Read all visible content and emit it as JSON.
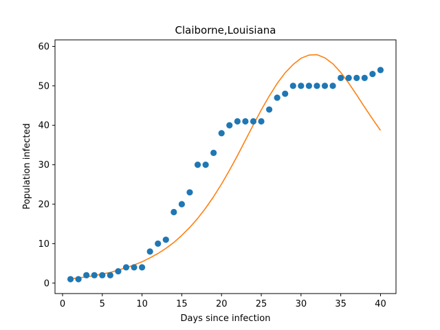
{
  "chart_data": {
    "type": "scatter",
    "title": "Claiborne,Louisiana",
    "xlabel": "Days since infection",
    "ylabel": "Population infected",
    "xlim": [
      -0.95,
      41.95
    ],
    "ylim": [
      -2.65,
      61.65
    ],
    "xticks": [
      0,
      5,
      10,
      15,
      20,
      25,
      30,
      35,
      40
    ],
    "yticks": [
      0,
      10,
      20,
      30,
      40,
      50,
      60
    ],
    "grid": false,
    "series": [
      {
        "kind": "scatter",
        "color": "#1f77b4",
        "x": [
          1,
          2,
          3,
          4,
          5,
          6,
          7,
          8,
          9,
          10,
          11,
          12,
          13,
          14,
          15,
          16,
          17,
          18,
          19,
          20,
          21,
          22,
          23,
          24,
          25,
          26,
          27,
          28,
          29,
          30,
          31,
          32,
          33,
          34,
          35,
          36,
          37,
          38,
          39,
          40
        ],
        "y": [
          1,
          1,
          2,
          2,
          2,
          2,
          3,
          4,
          4,
          4,
          8,
          10,
          11,
          18,
          20,
          23,
          30,
          30,
          33,
          38,
          40,
          41,
          41,
          41,
          41,
          44,
          47,
          48,
          50,
          50,
          50,
          50,
          50,
          50,
          52,
          52,
          52,
          52,
          53,
          54
        ]
      },
      {
        "kind": "line",
        "color": "#ff7f0e",
        "x": [
          1,
          2,
          3,
          4,
          5,
          6,
          7,
          8,
          9,
          10,
          11,
          12,
          13,
          14,
          15,
          16,
          17,
          18,
          19,
          20,
          21,
          22,
          23,
          24,
          25,
          26,
          27,
          28,
          29,
          30,
          31,
          32,
          33,
          34,
          35,
          36,
          37,
          38,
          39,
          40
        ],
        "y": [
          1.1,
          1.3,
          1.6,
          1.9,
          2.3,
          2.7,
          3.3,
          3.9,
          4.6,
          5.4,
          6.4,
          7.5,
          8.8,
          10.3,
          12.1,
          14.1,
          16.4,
          19.0,
          21.9,
          25.1,
          28.6,
          32.3,
          36.2,
          40.1,
          43.9,
          47.4,
          50.6,
          53.3,
          55.4,
          57.0,
          57.8,
          57.9,
          57.1,
          55.6,
          53.4,
          50.7,
          47.7,
          44.6,
          41.6,
          38.7
        ]
      }
    ]
  }
}
